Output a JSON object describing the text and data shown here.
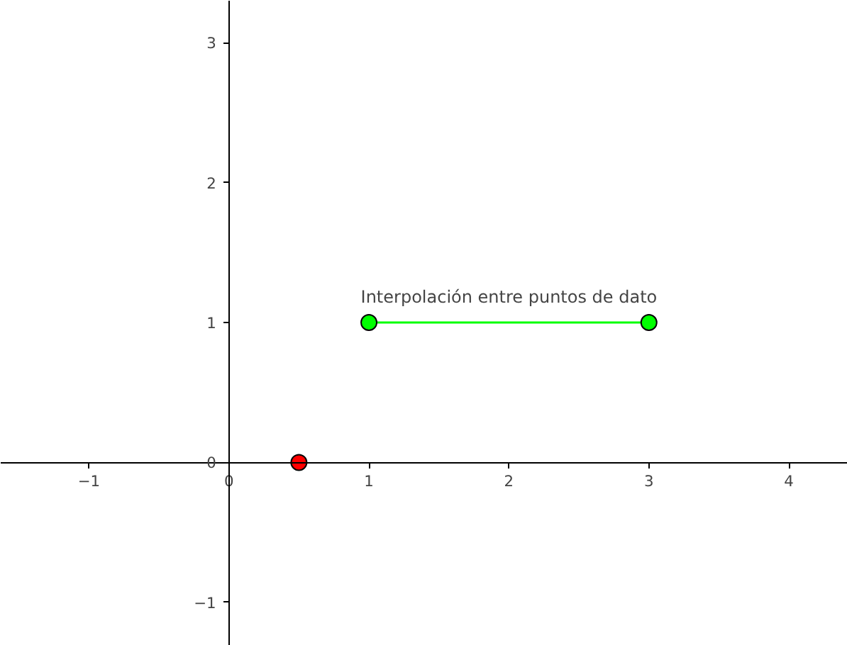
{
  "chart_data": {
    "type": "line",
    "series": [
      {
        "color": "#00ff00",
        "x": [
          1,
          3
        ],
        "values": [
          1,
          1
        ],
        "marker": "circle"
      },
      {
        "type": "scatter",
        "color": "#ff0000",
        "x": [
          0.5
        ],
        "values": [
          0
        ],
        "marker": "circle"
      }
    ],
    "annotations": [
      {
        "text": "Interpolación entre puntos de dato",
        "x": 2,
        "y": 1
      }
    ],
    "xlim": [
      -1.63,
      4.42
    ],
    "ylim": [
      -1.31,
      3.3
    ],
    "xticks": [
      -1,
      0,
      1,
      2,
      3,
      4
    ],
    "yticks": [
      -1,
      0,
      1,
      2,
      3
    ],
    "grid": false
  }
}
